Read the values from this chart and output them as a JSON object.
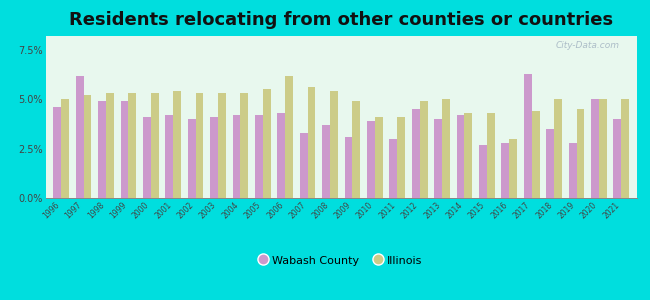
{
  "title": "Residents relocating from other counties or countries",
  "years": [
    1996,
    1997,
    1998,
    1999,
    2000,
    2001,
    2002,
    2003,
    2004,
    2005,
    2006,
    2007,
    2008,
    2009,
    2010,
    2011,
    2012,
    2013,
    2014,
    2015,
    2016,
    2017,
    2018,
    2019,
    2020,
    2021
  ],
  "wabash": [
    4.6,
    6.2,
    4.9,
    4.9,
    4.1,
    4.2,
    4.0,
    4.1,
    4.2,
    4.2,
    4.3,
    3.3,
    3.7,
    3.1,
    3.9,
    3.0,
    4.5,
    4.0,
    4.2,
    2.7,
    2.8,
    6.3,
    3.5,
    2.8,
    5.0,
    4.0
  ],
  "illinois": [
    5.0,
    5.2,
    5.3,
    5.3,
    5.3,
    5.4,
    5.3,
    5.3,
    5.3,
    5.5,
    6.2,
    5.6,
    5.4,
    4.9,
    4.1,
    4.1,
    4.9,
    5.0,
    4.3,
    4.3,
    3.0,
    4.4,
    5.0,
    4.5,
    5.0,
    5.0
  ],
  "wabash_color": "#cc99cc",
  "illinois_color": "#cccc88",
  "bg_outer": "#00dede",
  "bg_plot": "#e8f8ee",
  "yticks": [
    0,
    2.5,
    5.0,
    7.5
  ],
  "ylim": [
    0,
    8.2
  ],
  "title_fontsize": 13,
  "bar_width": 0.35,
  "legend_labels": [
    "Wabash County",
    "Illinois"
  ]
}
